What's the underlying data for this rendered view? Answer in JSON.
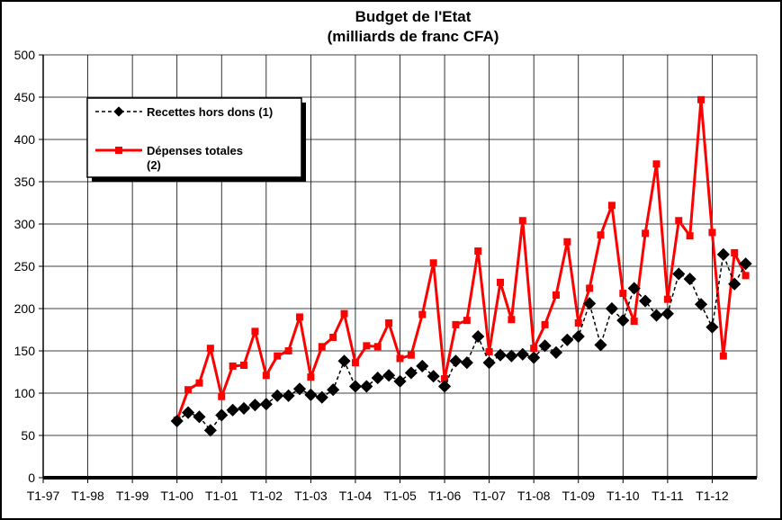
{
  "chart_data": {
    "type": "line",
    "title": "Budget de l'Etat",
    "subtitle": "(milliards de franc CFA)",
    "xlabel": "",
    "ylabel": "",
    "ylim": [
      0,
      500
    ],
    "y_ticks": [
      0,
      50,
      100,
      150,
      200,
      250,
      300,
      350,
      400,
      450,
      500
    ],
    "x_tick_labels": [
      "T1-97",
      "T1-98",
      "T1-99",
      "T1-00",
      "T1-01",
      "T1-02",
      "T1-03",
      "T1-04",
      "T1-05",
      "T1-06",
      "T1-07",
      "T1-08",
      "T1-09",
      "T1-10",
      "T1-11",
      "T1-12"
    ],
    "grid": true,
    "legend_position": "top-left",
    "x_start": "T1-00",
    "series": [
      {
        "name": "Recettes hors dons (1)",
        "color": "#000000",
        "line_style": "dashed",
        "marker": "diamond",
        "values": [
          67,
          77,
          72,
          56,
          74,
          80,
          82,
          86,
          87,
          97,
          97,
          105,
          98,
          95,
          104,
          138,
          108,
          108,
          118,
          121,
          114,
          124,
          132,
          120,
          108,
          138,
          136,
          167,
          136,
          145,
          144,
          146,
          142,
          156,
          148,
          163,
          167,
          206,
          157,
          200,
          186,
          224,
          209,
          192,
          194,
          241,
          235,
          205,
          178,
          264,
          229,
          253
        ]
      },
      {
        "name": "Dépenses totales (2)",
        "color": "#ff0000",
        "line_style": "solid",
        "marker": "square",
        "values": [
          68,
          104,
          112,
          153,
          96,
          132,
          133,
          173,
          121,
          144,
          150,
          190,
          119,
          155,
          166,
          194,
          136,
          156,
          155,
          183,
          141,
          145,
          193,
          254,
          117,
          181,
          186,
          268,
          149,
          231,
          187,
          304,
          153,
          181,
          216,
          279,
          183,
          224,
          287,
          322,
          218,
          185,
          289,
          371,
          211,
          304,
          286,
          447,
          290,
          144,
          266,
          239
        ]
      }
    ]
  }
}
